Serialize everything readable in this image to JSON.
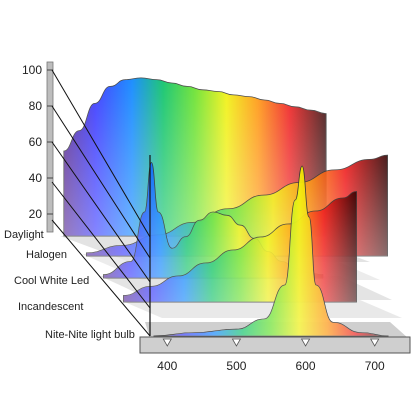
{
  "chart_data": {
    "type": "area",
    "title": "",
    "xlabel": "",
    "ylabel": "",
    "x_ticks": [
      400,
      500,
      600,
      700
    ],
    "y_ticks": [
      20,
      40,
      60,
      80,
      100
    ],
    "xlim": [
      375,
      725
    ],
    "ylim": [
      10,
      100
    ],
    "series": [
      {
        "name": "Daylight",
        "x": [
          380,
          400,
          420,
          440,
          460,
          480,
          500,
          520,
          540,
          560,
          580,
          600,
          620,
          640,
          660,
          680,
          700,
          720
        ],
        "y": [
          50,
          62,
          78,
          88,
          92,
          93,
          92,
          90,
          88,
          86,
          85,
          83,
          82,
          80,
          78,
          76,
          74,
          72
        ]
      },
      {
        "name": "Halogen",
        "x": [
          380,
          420,
          460,
          500,
          540,
          580,
          620,
          660,
          700,
          720
        ],
        "y": [
          3,
          10,
          20,
          32,
          45,
          58,
          70,
          82,
          92,
          96
        ]
      },
      {
        "name": "Cool White Led",
        "x": [
          380,
          420,
          440,
          450,
          460,
          480,
          500,
          520,
          540,
          560,
          580,
          600,
          620,
          640,
          660,
          680,
          700
        ],
        "y": [
          2,
          10,
          40,
          70,
          40,
          18,
          25,
          35,
          40,
          38,
          32,
          24,
          16,
          10,
          6,
          3,
          2
        ]
      },
      {
        "name": "Incandescent",
        "x": [
          380,
          420,
          460,
          500,
          540,
          580,
          620,
          660,
          700,
          720
        ],
        "y": [
          5,
          12,
          20,
          30,
          40,
          50,
          60,
          70,
          80,
          85
        ]
      },
      {
        "name": "Nite-Nite light bulb",
        "x": [
          380,
          440,
          500,
          540,
          570,
          585,
          595,
          605,
          615,
          640,
          680,
          720
        ],
        "y": [
          0,
          2,
          4,
          10,
          30,
          80,
          100,
          70,
          30,
          8,
          2,
          0
        ]
      }
    ]
  }
}
